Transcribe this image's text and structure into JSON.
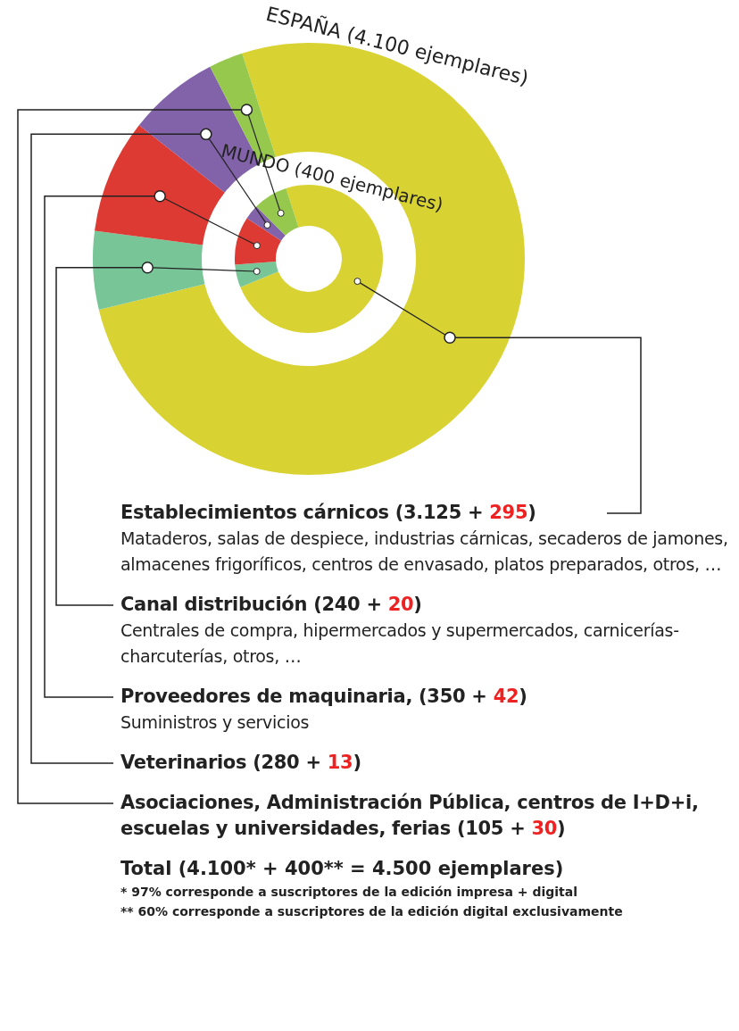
{
  "chart_data": {
    "type": "donut",
    "categories": [
      "Establecimientos cárnicos (3.125 + 295)",
      "Canal distribución (240 + 20)",
      "Proveedores de maquinaria, (350 + 42)",
      "Veterinarios (280 + 13)",
      "Asociaciones, Administración Pública, centros de I+D+i, escuelas y universidades, ferias (105 + 30)"
    ],
    "colors": [
      "#d9d233",
      "#78c698",
      "#dd3a33",
      "#8262a9",
      "#96c84e"
    ],
    "series": [
      {
        "name": "ESPAÑA (4.100 ejemplares)",
        "values": [
          3125,
          240,
          350,
          280,
          105
        ]
      },
      {
        "name": "MUNDO (400 ejemplares)",
        "values": [
          295,
          20,
          42,
          13,
          30
        ]
      }
    ],
    "annotations": [
      {
        "text": "Mataderos, salas de despiece, industrias cárnicas, secaderos de jamones, almacenes frigoríficos, centros de envasado, platos preparados, otros, …",
        "x": "Establecimientos cárnicos (3.125 + 295)"
      },
      {
        "text": "Centrales de compra, hipermercados y supermercados, carnicerías-charcuterías, otros, …",
        "x": "Canal distribución (240 + 20)"
      },
      {
        "text": "Suministros y servicios",
        "x": "Proveedores de maquinaria, (350 + 42)"
      },
      "Total (4.100* + 400** = 4.500 ejemplares)",
      "* 97% corresponde a suscriptores de la edición impresa + digital",
      "** 60% corresponde a suscriptores de la edición digital exclusivamente"
    ]
  }
}
